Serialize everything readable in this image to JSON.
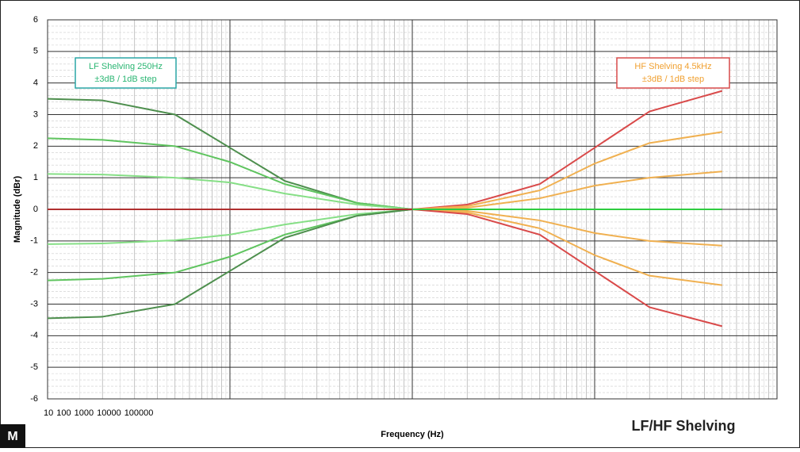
{
  "chart_data": {
    "type": "line",
    "x": [
      10,
      20,
      50,
      100,
      200,
      500,
      1000,
      2000,
      5000,
      10000,
      20000,
      50000
    ],
    "series": [
      {
        "color": "#4e8f4e",
        "values": [
          3.5,
          3.45,
          3.0,
          1.95,
          0.9,
          0.2,
          0,
          null,
          null,
          null,
          null,
          null
        ]
      },
      {
        "color": "#5fc45f",
        "values": [
          2.25,
          2.2,
          2.0,
          1.5,
          0.8,
          0.2,
          0,
          null,
          null,
          null,
          null,
          null
        ]
      },
      {
        "color": "#86df86",
        "values": [
          1.12,
          1.1,
          1.0,
          0.85,
          0.5,
          0.15,
          0,
          null,
          null,
          null,
          null,
          null
        ]
      },
      {
        "color": "#86df86",
        "values": [
          -1.1,
          -1.08,
          -0.98,
          -0.8,
          -0.48,
          -0.15,
          0,
          null,
          null,
          null,
          null,
          null
        ]
      },
      {
        "color": "#5fc45f",
        "values": [
          -2.25,
          -2.2,
          -2.0,
          -1.5,
          -0.8,
          -0.2,
          0,
          null,
          null,
          null,
          null,
          null
        ]
      },
      {
        "color": "#4e8f4e",
        "values": [
          -3.45,
          -3.4,
          -3.0,
          -1.95,
          -0.9,
          -0.2,
          0,
          null,
          null,
          null,
          null,
          null
        ]
      },
      {
        "color": "#b03030",
        "values": [
          0,
          0,
          0,
          0,
          0,
          0,
          0,
          null,
          null,
          null,
          null,
          null
        ]
      },
      {
        "color": "#d94a4a",
        "values": [
          null,
          null,
          null,
          null,
          null,
          null,
          0,
          0.15,
          0.8,
          1.95,
          3.1,
          3.75
        ]
      },
      {
        "color": "#f0b050",
        "values": [
          null,
          null,
          null,
          null,
          null,
          null,
          0,
          0.1,
          0.6,
          1.45,
          2.1,
          2.45
        ]
      },
      {
        "color": "#f0b050",
        "values": [
          null,
          null,
          null,
          null,
          null,
          null,
          0,
          0.05,
          0.35,
          0.75,
          1.0,
          1.2
        ]
      },
      {
        "color": "#f0b050",
        "values": [
          null,
          null,
          null,
          null,
          null,
          null,
          0,
          -0.05,
          -0.35,
          -0.75,
          -1.0,
          -1.15
        ]
      },
      {
        "color": "#f0b050",
        "values": [
          null,
          null,
          null,
          null,
          null,
          null,
          0,
          -0.1,
          -0.6,
          -1.45,
          -2.1,
          -2.4
        ]
      },
      {
        "color": "#d94a4a",
        "values": [
          null,
          null,
          null,
          null,
          null,
          null,
          0,
          -0.15,
          -0.8,
          -1.95,
          -3.1,
          -3.7
        ]
      },
      {
        "color": "#2ecc40",
        "values": [
          null,
          null,
          null,
          null,
          null,
          null,
          0,
          0,
          0,
          0,
          0,
          0
        ]
      }
    ],
    "xlim": [
      10,
      100000
    ],
    "xticks": [
      10,
      100,
      1000,
      10000,
      100000
    ],
    "xscale": "log",
    "ylim": [
      -6,
      6
    ],
    "yticks": [
      -6,
      -5,
      -4,
      -3,
      -2,
      -1,
      0,
      1,
      2,
      3,
      4,
      5,
      6
    ],
    "grid": true,
    "xlabel": "Frequency (Hz)",
    "ylabel": "Magnitude (dBr)",
    "annotations": [
      {
        "lines": [
          "LF Shelving  250Hz",
          "±3dB / 1dB step"
        ],
        "color": "#2bb673",
        "border": "#2aa6a6"
      },
      {
        "lines": [
          "HF Shelving 4.5kHz",
          "±3dB / 1dB step"
        ],
        "color": "#f0a030",
        "border": "#d94a4a"
      }
    ],
    "caption": "LF/HF Shelving",
    "logo": "M"
  }
}
